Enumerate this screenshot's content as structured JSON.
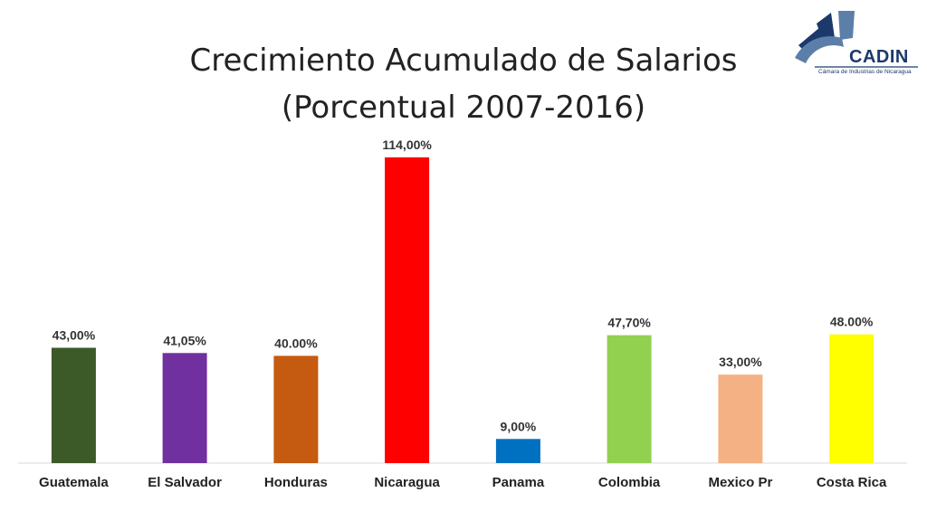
{
  "header": {
    "title_line1": "Crecimiento Acumulado de Salarios",
    "title_line2": "(Porcentual 2007-2016)"
  },
  "logo": {
    "name": "CADIN",
    "subtitle": "Cámara de Industrias de Nicaragua",
    "colors": {
      "primary": "#1b3a6b",
      "secondary": "#5b7fa8"
    }
  },
  "chart_data": {
    "type": "bar",
    "title": "Crecimiento Acumulado de Salarios (Porcentual 2007-2016)",
    "xlabel": "",
    "ylabel": "",
    "ylim": [
      0,
      114
    ],
    "grid": false,
    "legend": "none",
    "categories": [
      "Guatemala",
      "El Salvador",
      "Honduras",
      "Nicaragua",
      "Panama",
      "Colombia",
      "Mexico Pr",
      "Costa Rica"
    ],
    "values": [
      43.0,
      41.05,
      40.0,
      114.0,
      9.0,
      47.7,
      33.0,
      48.0
    ],
    "data_labels": [
      "43,00%",
      "41,05%",
      "40.00%",
      "114,00%",
      "9,00%",
      "47,70%",
      "33,00%",
      "48.00%"
    ],
    "colors": [
      "#3b5a27",
      "#7030a0",
      "#c55a11",
      "#ff0000",
      "#0070c0",
      "#92d050",
      "#f4b183",
      "#ffff00"
    ]
  }
}
